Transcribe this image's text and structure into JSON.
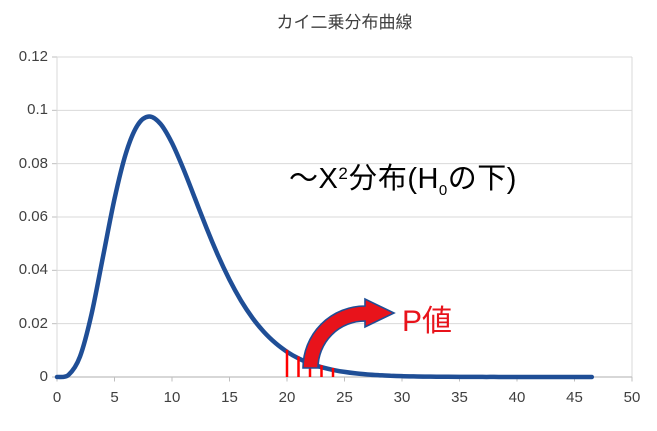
{
  "p_value_label": "P値",
  "annotation": {
    "pre": "～X",
    "sup": "2",
    "mid": "分布(H",
    "sub": "0",
    "post": "の下)"
  },
  "chart_data": {
    "type": "line",
    "title": "カイ二乗分布曲線",
    "xlabel": "",
    "ylabel": "",
    "xlim": [
      0,
      50
    ],
    "ylim": [
      0,
      0.12
    ],
    "x_ticks": [
      "0",
      "5",
      "10",
      "15",
      "20",
      "25",
      "30",
      "35",
      "40",
      "45",
      "50"
    ],
    "y_ticks": [
      "0",
      "0.02",
      "0.04",
      "0.06",
      "0.08",
      "0.1",
      "0.12"
    ],
    "grid": "horizontal",
    "legend": "none",
    "series": [
      {
        "name": "chi-square-pdf-df10",
        "x": [
          0,
          1,
          2,
          3,
          4,
          5,
          6,
          7,
          8,
          9,
          10,
          11,
          12,
          13,
          14,
          15,
          16,
          17,
          18,
          19,
          20,
          21,
          22,
          23,
          24,
          25,
          26,
          27,
          28,
          29,
          30,
          31,
          32,
          33,
          34,
          35,
          36,
          37,
          38,
          39,
          40,
          41,
          42,
          43,
          44,
          45,
          46,
          46.5
        ],
        "y": [
          0,
          0.00079,
          0.00766,
          0.02353,
          0.04511,
          0.0668,
          0.08401,
          0.0944,
          0.09768,
          0.09491,
          0.08774,
          0.07791,
          0.06693,
          0.05591,
          0.04561,
          0.03646,
          0.02863,
          0.02213,
          0.01687,
          0.0127,
          0.00946,
          0.00697,
          0.00509,
          0.00369,
          0.00265,
          0.0019,
          0.00134,
          0.00095,
          0.00067,
          0.00046,
          0.00032,
          0.00022,
          0.00015,
          0.00011,
          7e-05,
          5e-05,
          3e-05,
          2e-05,
          2e-05,
          1e-05,
          1e-05,
          0,
          0,
          0,
          0,
          0,
          0,
          0
        ]
      }
    ],
    "p_value_hatch": {
      "x": [
        20,
        21,
        22,
        23,
        24
      ],
      "y_top": [
        0.00946,
        0.00697,
        0.00509,
        0.00369,
        0.00265
      ]
    },
    "colors": {
      "curve": "#1f4e96",
      "grid": "#d9d9d9",
      "axis": "#bfbfbf",
      "hatch_red": "#ff0000",
      "accent_red": "#e8131b",
      "tick_text": "#404040",
      "title_text": "#3f3f3f"
    }
  }
}
